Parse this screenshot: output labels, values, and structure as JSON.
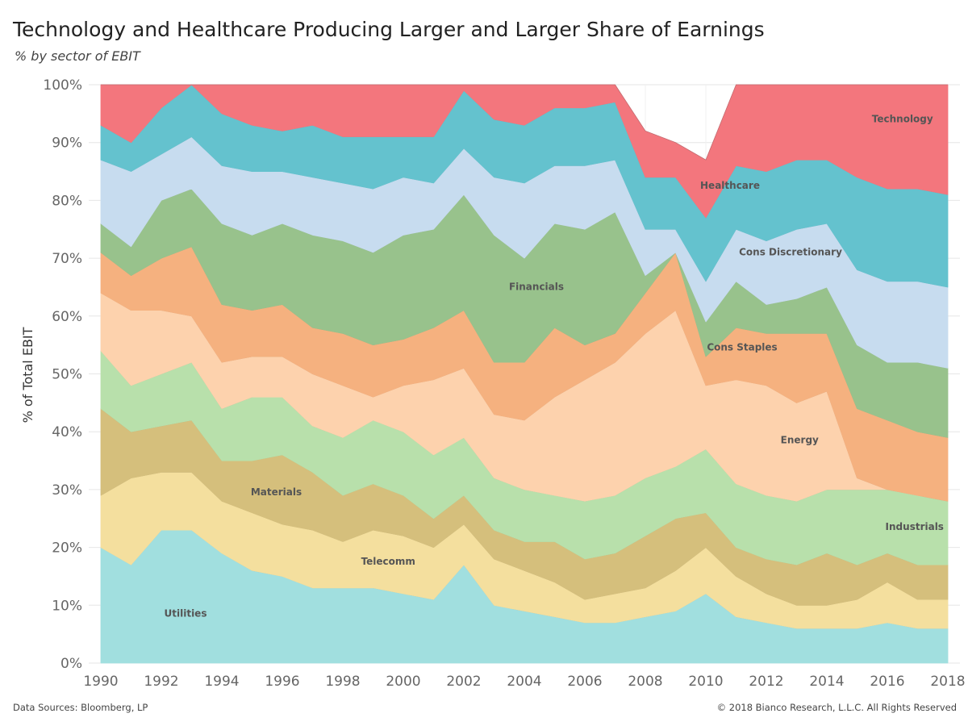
{
  "header": {
    "title": "Technology and Healthcare Producing Larger and Larger Share of Earnings",
    "subtitle": "% by sector of EBIT"
  },
  "footer": {
    "source": "Data Sources: Bloomberg, LP",
    "copyright": "© 2018 Bianco Research, L.L.C. All Rights Reserved"
  },
  "chart_data": {
    "type": "area",
    "stacked": true,
    "ylabel": "% of Total EBIT",
    "xlabel": "",
    "xlim": [
      1989.6,
      2018.4
    ],
    "ylim": [
      0,
      100
    ],
    "x_ticks": [
      1990,
      1992,
      1994,
      1996,
      1998,
      2000,
      2002,
      2004,
      2006,
      2008,
      2010,
      2012,
      2014,
      2016,
      2018
    ],
    "y_ticks": [
      0,
      10,
      20,
      30,
      40,
      50,
      60,
      70,
      80,
      90,
      100
    ],
    "y_tick_labels": [
      "0%",
      "10%",
      "20%",
      "30%",
      "40%",
      "50%",
      "60%",
      "70%",
      "80%",
      "90%",
      "100%"
    ],
    "x": [
      1990,
      1991,
      1992,
      1993,
      1994,
      1995,
      1996,
      1997,
      1998,
      1999,
      2000,
      2001,
      2002,
      2003,
      2004,
      2005,
      2006,
      2007,
      2008,
      2009,
      2010,
      2011,
      2012,
      2013,
      2014,
      2015,
      2016,
      2017,
      2018
    ],
    "series": [
      {
        "name": "Utilities",
        "color": "#a1dfdf",
        "values": [
          20,
          17,
          23,
          23,
          19,
          16,
          15,
          13,
          13,
          13,
          12,
          11,
          17,
          10,
          9,
          8,
          7,
          7,
          8,
          9,
          12,
          8,
          7,
          6,
          6,
          6,
          7,
          6,
          6
        ]
      },
      {
        "name": "Telecomm",
        "color": "#f4df9e",
        "values": [
          9,
          15,
          10,
          10,
          9,
          10,
          9,
          10,
          8,
          10,
          10,
          9,
          7,
          8,
          7,
          6,
          4,
          5,
          5,
          7,
          8,
          7,
          5,
          4,
          4,
          5,
          7,
          5,
          5
        ]
      },
      {
        "name": "Materials",
        "color": "#d5bf7c",
        "values": [
          15,
          8,
          8,
          9,
          7,
          9,
          12,
          10,
          8,
          8,
          7,
          5,
          5,
          5,
          5,
          7,
          7,
          7,
          9,
          9,
          6,
          5,
          6,
          7,
          9,
          6,
          5,
          6,
          6
        ]
      },
      {
        "name": "Industrials",
        "color": "#b8e0ab",
        "values": [
          10,
          8,
          9,
          10,
          9,
          11,
          10,
          8,
          10,
          11,
          11,
          11,
          10,
          9,
          9,
          8,
          10,
          10,
          10,
          9,
          11,
          11,
          11,
          11,
          11,
          13,
          11,
          12,
          11
        ]
      },
      {
        "name": "Energy",
        "color": "#fdd2ad",
        "values": [
          10,
          13,
          11,
          8,
          8,
          7,
          7,
          9,
          9,
          4,
          8,
          13,
          12,
          11,
          12,
          17,
          21,
          23,
          25,
          27,
          11,
          18,
          19,
          17,
          17,
          2,
          0,
          0,
          0
        ]
      },
      {
        "name": "Cons Staples",
        "color": "#f5b17f",
        "values": [
          7,
          6,
          9,
          12,
          10,
          8,
          9,
          8,
          9,
          9,
          8,
          9,
          10,
          9,
          10,
          12,
          6,
          5,
          7,
          10,
          5,
          9,
          9,
          12,
          10,
          12,
          12,
          11,
          11
        ]
      },
      {
        "name": "Financials",
        "color": "#98c28c",
        "values": [
          5,
          5,
          10,
          10,
          14,
          13,
          14,
          16,
          16,
          16,
          18,
          17,
          20,
          22,
          18,
          18,
          20,
          21,
          3,
          0,
          6,
          8,
          5,
          6,
          8,
          11,
          10,
          12,
          12
        ]
      },
      {
        "name": "Cons Discretionary",
        "color": "#c7dcef",
        "values": [
          11,
          13,
          8,
          9,
          10,
          11,
          9,
          10,
          10,
          11,
          10,
          8,
          8,
          10,
          13,
          10,
          11,
          9,
          8,
          4,
          7,
          9,
          11,
          12,
          11,
          13,
          14,
          14,
          14
        ]
      },
      {
        "name": "Healthcare",
        "color": "#64c2ce",
        "values": [
          6,
          5,
          8,
          9,
          9,
          8,
          7,
          9,
          8,
          9,
          7,
          8,
          10,
          10,
          10,
          10,
          10,
          10,
          9,
          9,
          11,
          11,
          12,
          12,
          11,
          16,
          16,
          16,
          16
        ]
      },
      {
        "name": "Technology",
        "color": "#f3767d",
        "values": [
          7,
          10,
          4,
          0,
          5,
          7,
          8,
          7,
          9,
          9,
          9,
          9,
          1,
          6,
          7,
          4,
          4,
          3,
          8,
          6,
          10,
          14,
          15,
          13,
          13,
          16,
          18,
          18,
          19
        ]
      }
    ],
    "annotations": [
      {
        "text": "Technology",
        "series": "Technology",
        "x": 2016.5,
        "y": 94
      },
      {
        "text": "Healthcare",
        "series": "Healthcare",
        "x": 2010.8,
        "y": 82.5
      },
      {
        "text": "Cons Discretionary",
        "series": "Cons Discretionary",
        "x": 2012.8,
        "y": 71
      },
      {
        "text": "Financials",
        "series": "Financials",
        "x": 2004.4,
        "y": 65
      },
      {
        "text": "Cons Staples",
        "series": "Cons Staples",
        "x": 2011.2,
        "y": 54.5
      },
      {
        "text": "Energy",
        "series": "Energy",
        "x": 2013.1,
        "y": 38.5
      },
      {
        "text": "Industrials",
        "series": "Industrials",
        "x": 2016.9,
        "y": 23.5
      },
      {
        "text": "Materials",
        "series": "Materials",
        "x": 1995.8,
        "y": 29.5
      },
      {
        "text": "Telecomm",
        "series": "Telecomm",
        "x": 1999.5,
        "y": 17.5
      },
      {
        "text": "Utilities",
        "series": "Utilities",
        "x": 1992.8,
        "y": 8.5
      }
    ]
  }
}
